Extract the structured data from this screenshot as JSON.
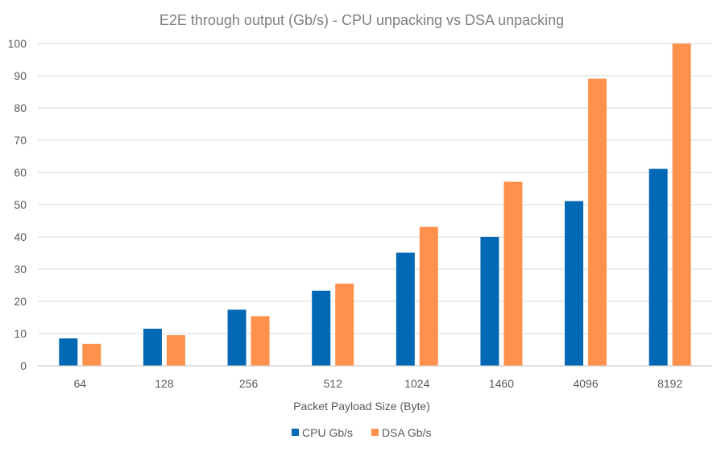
{
  "chart_data": {
    "type": "bar",
    "title": "E2E through output (Gb/s)  -  CPU unpacking vs DSA unpacking",
    "xlabel": "Packet Payload Size (Byte)",
    "ylabel": "",
    "categories": [
      "64",
      "128",
      "256",
      "512",
      "1024",
      "1460",
      "4096",
      "8192"
    ],
    "series": [
      {
        "name": "CPU Gb/s",
        "color": "#0068b5",
        "values": [
          8.5,
          11.5,
          17.4,
          23.3,
          35.1,
          40,
          51.1,
          61.1
        ]
      },
      {
        "name": "DSA Gb/s",
        "color": "#ff914d",
        "values": [
          6.8,
          9.5,
          15.4,
          25.5,
          43.1,
          57.1,
          89.1,
          100
        ]
      }
    ],
    "ylim": [
      0,
      100
    ],
    "yticks": [
      0,
      10,
      20,
      30,
      40,
      50,
      60,
      70,
      80,
      90,
      100
    ],
    "grid": true,
    "legend": "bottom-center"
  }
}
